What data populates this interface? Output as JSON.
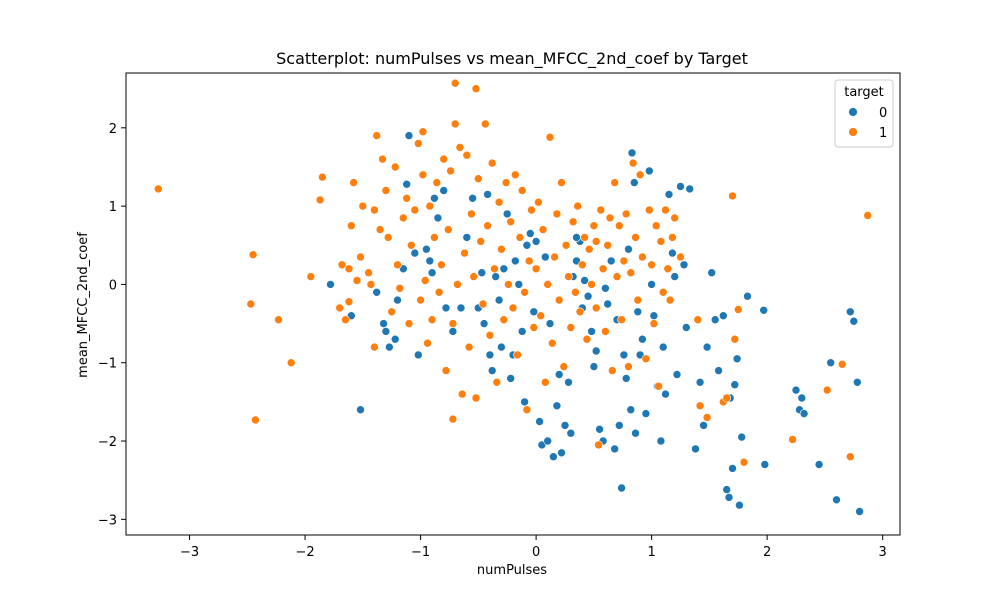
{
  "chart_data": {
    "type": "scatter",
    "title": "Scatterplot: numPulses vs mean_MFCC_2nd_coef by Target",
    "xlabel": "numPulses",
    "ylabel": "mean_MFCC_2nd_coef",
    "xlim": [
      -3.55,
      3.15
    ],
    "ylim": [
      -3.2,
      2.7
    ],
    "xticks": [
      -3,
      -2,
      -1,
      0,
      1,
      2,
      3
    ],
    "yticks": [
      -3,
      -2,
      -1,
      0,
      1,
      2
    ],
    "xtick_labels": [
      "−3",
      "−2",
      "−1",
      "0",
      "1",
      "2",
      "3"
    ],
    "ytick_labels": [
      "−3",
      "−2",
      "−1",
      "0",
      "1",
      "2"
    ],
    "grid": false,
    "legend": {
      "title": "target",
      "placement": "top-right"
    },
    "series": [
      {
        "name": "0",
        "color": "#1f77b4",
        "points": [
          [
            -1.78,
            0.0
          ],
          [
            -1.6,
            -0.4
          ],
          [
            -1.52,
            -1.6
          ],
          [
            -1.38,
            -0.1
          ],
          [
            -1.32,
            -0.5
          ],
          [
            -1.3,
            -0.6
          ],
          [
            -1.27,
            -0.8
          ],
          [
            -1.22,
            -0.7
          ],
          [
            -1.2,
            -0.2
          ],
          [
            -1.15,
            0.2
          ],
          [
            -1.12,
            1.28
          ],
          [
            -1.1,
            1.9
          ],
          [
            -1.05,
            0.4
          ],
          [
            -1.02,
            -0.9
          ],
          [
            -0.95,
            0.45
          ],
          [
            -0.92,
            0.3
          ],
          [
            -0.9,
            0.15
          ],
          [
            -0.88,
            1.1
          ],
          [
            -0.85,
            0.85
          ],
          [
            -0.8,
            1.2
          ],
          [
            -0.78,
            -0.3
          ],
          [
            -0.72,
            -0.6
          ],
          [
            -0.65,
            -0.3
          ],
          [
            -0.6,
            0.6
          ],
          [
            -0.55,
            1.1
          ],
          [
            -0.5,
            -0.3
          ],
          [
            -0.47,
            0.15
          ],
          [
            -0.45,
            -0.5
          ],
          [
            -0.42,
            1.15
          ],
          [
            -0.4,
            -0.9
          ],
          [
            -0.38,
            -1.1
          ],
          [
            -0.35,
            0.1
          ],
          [
            -0.32,
            -0.2
          ],
          [
            -0.3,
            -0.8
          ],
          [
            -0.28,
            0.2
          ],
          [
            -0.25,
            0.9
          ],
          [
            -0.22,
            -1.2
          ],
          [
            -0.2,
            -0.9
          ],
          [
            -0.18,
            0.3
          ],
          [
            -0.15,
            0.0
          ],
          [
            -0.12,
            -0.6
          ],
          [
            -0.1,
            -1.5
          ],
          [
            -0.08,
            0.5
          ],
          [
            -0.05,
            0.65
          ],
          [
            -0.02,
            -0.35
          ],
          [
            0.0,
            0.55
          ],
          [
            0.03,
            -1.75
          ],
          [
            0.05,
            -2.05
          ],
          [
            0.08,
            0.35
          ],
          [
            0.1,
            -2.0
          ],
          [
            0.12,
            -0.5
          ],
          [
            0.15,
            -2.2
          ],
          [
            0.18,
            -1.55
          ],
          [
            0.2,
            -1.15
          ],
          [
            0.22,
            -2.15
          ],
          [
            0.25,
            -1.8
          ],
          [
            0.28,
            -1.25
          ],
          [
            0.3,
            -1.9
          ],
          [
            0.32,
            0.1
          ],
          [
            0.35,
            0.3
          ],
          [
            0.38,
            0.55
          ],
          [
            0.4,
            -0.3
          ],
          [
            0.42,
            0.05
          ],
          [
            0.45,
            -0.15
          ],
          [
            0.48,
            -0.6
          ],
          [
            0.5,
            -1.05
          ],
          [
            0.52,
            -0.85
          ],
          [
            0.55,
            -1.85
          ],
          [
            0.58,
            -2.0
          ],
          [
            0.6,
            -0.05
          ],
          [
            0.62,
            -0.25
          ],
          [
            0.65,
            0.3
          ],
          [
            0.68,
            -2.1
          ],
          [
            0.7,
            -0.45
          ],
          [
            0.72,
            -1.8
          ],
          [
            0.74,
            -2.6
          ],
          [
            0.76,
            -0.9
          ],
          [
            0.78,
            -1.2
          ],
          [
            0.8,
            0.45
          ],
          [
            0.82,
            -1.6
          ],
          [
            0.83,
            1.68
          ],
          [
            0.85,
            1.3
          ],
          [
            0.86,
            -1.9
          ],
          [
            0.88,
            -0.35
          ],
          [
            0.9,
            -0.9
          ],
          [
            0.92,
            -0.7
          ],
          [
            0.95,
            -1.65
          ],
          [
            0.98,
            1.45
          ],
          [
            1.0,
            0.0
          ],
          [
            1.02,
            -0.4
          ],
          [
            1.05,
            -1.3
          ],
          [
            1.08,
            -2.0
          ],
          [
            1.1,
            -0.8
          ],
          [
            1.12,
            -1.4
          ],
          [
            1.15,
            1.15
          ],
          [
            1.18,
            0.4
          ],
          [
            1.2,
            0.1
          ],
          [
            1.22,
            -1.15
          ],
          [
            1.25,
            1.25
          ],
          [
            1.28,
            0.25
          ],
          [
            1.3,
            -0.55
          ],
          [
            1.33,
            1.22
          ],
          [
            1.38,
            -2.1
          ],
          [
            1.42,
            -1.25
          ],
          [
            1.45,
            -1.8
          ],
          [
            1.48,
            -0.8
          ],
          [
            1.52,
            0.15
          ],
          [
            1.55,
            -0.45
          ],
          [
            1.58,
            -1.1
          ],
          [
            1.62,
            -0.4
          ],
          [
            1.65,
            -2.62
          ],
          [
            1.67,
            -2.72
          ],
          [
            1.68,
            -1.45
          ],
          [
            1.7,
            -2.35
          ],
          [
            1.72,
            -1.28
          ],
          [
            1.74,
            -0.95
          ],
          [
            1.76,
            -2.82
          ],
          [
            1.78,
            -1.95
          ],
          [
            1.98,
            -2.3
          ],
          [
            2.25,
            -1.35
          ],
          [
            2.28,
            -1.6
          ],
          [
            2.3,
            -1.45
          ],
          [
            2.32,
            -1.65
          ],
          [
            2.45,
            -2.3
          ],
          [
            2.55,
            -1.0
          ],
          [
            2.6,
            -2.75
          ],
          [
            2.72,
            -0.35
          ],
          [
            2.75,
            -0.47
          ],
          [
            2.78,
            -1.25
          ],
          [
            2.8,
            -2.9
          ],
          [
            1.97,
            -0.33
          ],
          [
            1.83,
            -0.15
          ],
          [
            0.35,
            0.6
          ]
        ]
      },
      {
        "name": "1",
        "color": "#ff7f0e",
        "points": [
          [
            -3.27,
            1.22
          ],
          [
            -2.47,
            -0.25
          ],
          [
            -2.45,
            0.38
          ],
          [
            -2.43,
            -1.73
          ],
          [
            -2.23,
            -0.45
          ],
          [
            -2.12,
            -1.0
          ],
          [
            -1.95,
            0.1
          ],
          [
            -1.87,
            1.08
          ],
          [
            -1.85,
            1.37
          ],
          [
            -1.7,
            -0.3
          ],
          [
            -1.68,
            0.25
          ],
          [
            -1.65,
            -0.45
          ],
          [
            -1.62,
            0.2
          ],
          [
            -1.6,
            0.75
          ],
          [
            -1.58,
            1.3
          ],
          [
            -1.55,
            0.05
          ],
          [
            -1.52,
            0.35
          ],
          [
            -1.5,
            1.0
          ],
          [
            -1.45,
            0.15
          ],
          [
            -1.43,
            0.0
          ],
          [
            -1.4,
            0.95
          ],
          [
            -1.38,
            1.9
          ],
          [
            -1.35,
            0.7
          ],
          [
            -1.33,
            1.6
          ],
          [
            -1.3,
            1.2
          ],
          [
            -1.28,
            0.6
          ],
          [
            -1.25,
            -0.35
          ],
          [
            -1.22,
            1.5
          ],
          [
            -1.2,
            0.25
          ],
          [
            -1.18,
            -0.05
          ],
          [
            -1.15,
            0.85
          ],
          [
            -1.12,
            1.1
          ],
          [
            -1.1,
            -0.5
          ],
          [
            -1.08,
            0.5
          ],
          [
            -1.05,
            0.95
          ],
          [
            -1.02,
            1.8
          ],
          [
            -1.0,
            -0.2
          ],
          [
            -0.98,
            1.4
          ],
          [
            -0.96,
            0.05
          ],
          [
            -0.94,
            -0.75
          ],
          [
            -0.92,
            1.0
          ],
          [
            -0.9,
            -0.45
          ],
          [
            -0.88,
            0.6
          ],
          [
            -0.86,
            1.3
          ],
          [
            -0.84,
            -0.1
          ],
          [
            -0.82,
            0.25
          ],
          [
            -0.8,
            1.6
          ],
          [
            -0.78,
            -1.1
          ],
          [
            -0.76,
            0.7
          ],
          [
            -0.74,
            1.45
          ],
          [
            -0.72,
            -0.5
          ],
          [
            -0.7,
            2.05
          ],
          [
            -0.68,
            0.0
          ],
          [
            -0.66,
            1.75
          ],
          [
            -0.64,
            -1.4
          ],
          [
            -0.62,
            0.4
          ],
          [
            -0.6,
            1.65
          ],
          [
            -0.58,
            -0.8
          ],
          [
            -0.56,
            0.9
          ],
          [
            -0.54,
            0.1
          ],
          [
            -0.52,
            -1.45
          ],
          [
            -0.5,
            1.35
          ],
          [
            -0.48,
            0.55
          ],
          [
            -0.46,
            -0.25
          ],
          [
            -0.44,
            2.05
          ],
          [
            -0.42,
            0.75
          ],
          [
            -0.4,
            -0.65
          ],
          [
            -0.38,
            1.55
          ],
          [
            -0.36,
            0.2
          ],
          [
            -0.34,
            -1.25
          ],
          [
            -0.32,
            1.05
          ],
          [
            -0.3,
            0.45
          ],
          [
            -0.28,
            -0.45
          ],
          [
            -0.26,
            1.3
          ],
          [
            -0.24,
            0.0
          ],
          [
            -0.22,
            0.8
          ],
          [
            -0.2,
            -0.3
          ],
          [
            -0.18,
            1.4
          ],
          [
            -0.16,
            -0.9
          ],
          [
            -0.14,
            0.6
          ],
          [
            -0.12,
            1.2
          ],
          [
            -0.1,
            -0.1
          ],
          [
            -0.08,
            -1.6
          ],
          [
            -0.06,
            0.3
          ],
          [
            -0.04,
            0.95
          ],
          [
            -0.02,
            -0.55
          ],
          [
            0.0,
            0.2
          ],
          [
            0.02,
            1.05
          ],
          [
            0.04,
            -0.4
          ],
          [
            0.06,
            0.7
          ],
          [
            0.08,
            -1.25
          ],
          [
            0.1,
            0.0
          ],
          [
            0.12,
            1.88
          ],
          [
            0.14,
            -0.75
          ],
          [
            0.16,
            0.35
          ],
          [
            0.18,
            0.9
          ],
          [
            0.2,
            -0.2
          ],
          [
            0.22,
            1.3
          ],
          [
            0.24,
            -1.05
          ],
          [
            0.26,
            0.5
          ],
          [
            0.28,
            0.1
          ],
          [
            0.3,
            -0.55
          ],
          [
            0.32,
            0.8
          ],
          [
            0.34,
            -0.1
          ],
          [
            0.36,
            1.0
          ],
          [
            0.38,
            -0.35
          ],
          [
            0.4,
            0.25
          ],
          [
            0.42,
            0.6
          ],
          [
            0.44,
            -0.7
          ],
          [
            0.46,
            0.45
          ],
          [
            0.48,
            0.0
          ],
          [
            0.5,
            0.75
          ],
          [
            0.52,
            -0.3
          ],
          [
            0.54,
            -2.05
          ],
          [
            0.56,
            0.95
          ],
          [
            0.58,
            0.2
          ],
          [
            0.6,
            -0.6
          ],
          [
            0.62,
            0.5
          ],
          [
            0.64,
            0.85
          ],
          [
            0.66,
            -1.1
          ],
          [
            0.68,
            1.3
          ],
          [
            0.7,
            0.1
          ],
          [
            0.72,
            0.75
          ],
          [
            0.74,
            -0.45
          ],
          [
            0.76,
            0.3
          ],
          [
            0.78,
            0.9
          ],
          [
            0.8,
            -1.05
          ],
          [
            0.82,
            0.15
          ],
          [
            0.84,
            1.55
          ],
          [
            0.86,
            0.6
          ],
          [
            0.88,
            -0.2
          ],
          [
            0.9,
            1.4
          ],
          [
            0.92,
            0.35
          ],
          [
            0.95,
            -0.95
          ],
          [
            0.98,
            0.95
          ],
          [
            1.0,
            0.25
          ],
          [
            1.02,
            -0.5
          ],
          [
            1.04,
            0.75
          ],
          [
            1.06,
            -1.3
          ],
          [
            1.08,
            0.55
          ],
          [
            1.1,
            -0.1
          ],
          [
            1.12,
            0.95
          ],
          [
            1.14,
            0.2
          ],
          [
            1.16,
            -0.2
          ],
          [
            1.18,
            0.6
          ],
          [
            1.2,
            0.85
          ],
          [
            1.25,
            0.35
          ],
          [
            1.4,
            -0.45
          ],
          [
            1.42,
            -1.55
          ],
          [
            1.48,
            -1.7
          ],
          [
            1.62,
            -1.5
          ],
          [
            1.65,
            -1.45
          ],
          [
            1.7,
            1.13
          ],
          [
            1.72,
            -0.7
          ],
          [
            1.75,
            -0.32
          ],
          [
            1.8,
            -2.27
          ],
          [
            2.22,
            -1.98
          ],
          [
            2.52,
            -1.35
          ],
          [
            2.65,
            -1.02
          ],
          [
            2.72,
            -2.2
          ],
          [
            2.87,
            0.88
          ],
          [
            -0.7,
            2.57
          ],
          [
            -0.52,
            2.5
          ],
          [
            -0.98,
            1.95
          ],
          [
            -1.62,
            -0.22
          ],
          [
            -1.4,
            -0.8
          ],
          [
            -0.72,
            -1.72
          ],
          [
            0.52,
            0.55
          ]
        ]
      }
    ]
  }
}
